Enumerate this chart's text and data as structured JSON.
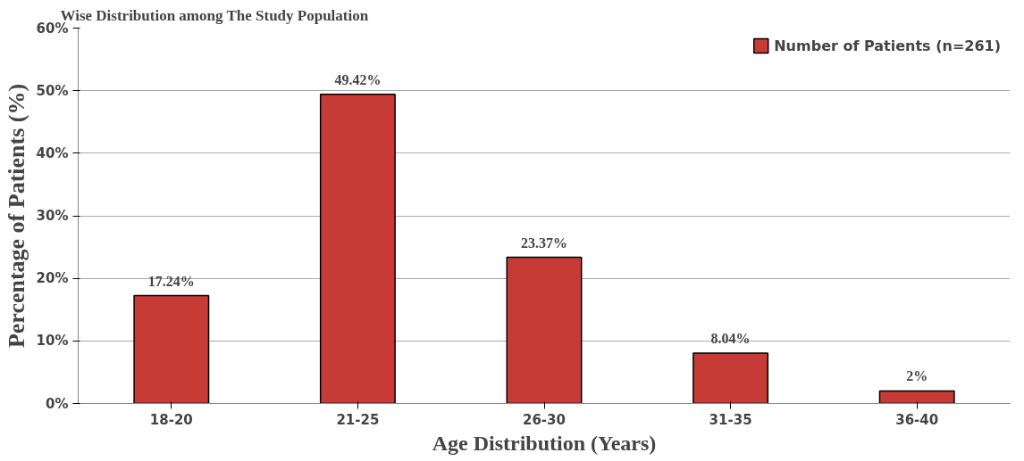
{
  "chart_data": {
    "type": "bar",
    "title": "Wise Distribution among The Study Population",
    "xlabel": "Age Distribution (Years)",
    "ylabel": "Percentage of Patients (%)",
    "categories": [
      "18-20",
      "21-25",
      "26-30",
      "31-35",
      "36-40"
    ],
    "series": [
      {
        "name": "Number of Patients (n=261)",
        "color": "#c73b37",
        "values": [
          17.24,
          49.42,
          23.37,
          8.04,
          2
        ],
        "value_labels": [
          "17.24%",
          "49.42%",
          "23.37%",
          "8.04%",
          "2%"
        ]
      }
    ],
    "ylim": [
      0,
      60
    ],
    "yticks": [
      {
        "value": 0,
        "label": "0%"
      },
      {
        "value": 10,
        "label": "10%"
      },
      {
        "value": 20,
        "label": "20%"
      },
      {
        "value": 30,
        "label": "30%"
      },
      {
        "value": 40,
        "label": "40%"
      },
      {
        "value": 50,
        "label": "50%"
      },
      {
        "value": 60,
        "label": "60%"
      }
    ],
    "grid": "y",
    "legend": "top right"
  }
}
